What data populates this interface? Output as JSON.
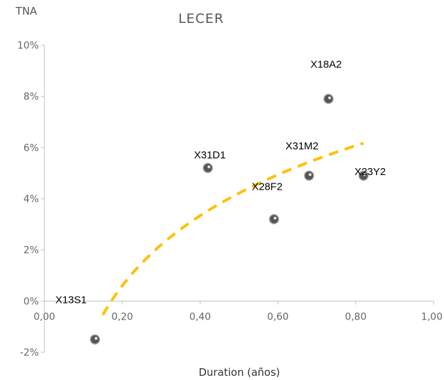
{
  "chart_data": {
    "type": "scatter",
    "title": "LECER",
    "xlabel": "Duration (años)",
    "ylabel": "TNA",
    "xlim": [
      0,
      1
    ],
    "ylim": [
      -0.02,
      0.1
    ],
    "x_ticks": [
      "0,00",
      "0,20",
      "0,40",
      "0,60",
      "0,80",
      "1,00"
    ],
    "y_ticks": [
      "-2%",
      "0%",
      "2%",
      "4%",
      "6%",
      "8%",
      "10%"
    ],
    "grid": false,
    "legend": "none",
    "series": [
      {
        "marker_color": "#555555",
        "points": [
          {
            "label": "X13S1",
            "x": 0.13,
            "y": -0.015
          },
          {
            "label": "X31D1",
            "x": 0.42,
            "y": 0.052
          },
          {
            "label": "X28F2",
            "x": 0.59,
            "y": 0.032
          },
          {
            "label": "X31M2",
            "x": 0.68,
            "y": 0.049
          },
          {
            "label": "X18A2",
            "x": 0.73,
            "y": 0.079
          },
          {
            "label": "X23Y2",
            "x": 0.82,
            "y": 0.049
          }
        ]
      }
    ],
    "trendline": {
      "type": "logarithmic",
      "color": "#ffc000",
      "style": "dashed",
      "x_range": [
        0.15,
        0.82
      ]
    }
  }
}
